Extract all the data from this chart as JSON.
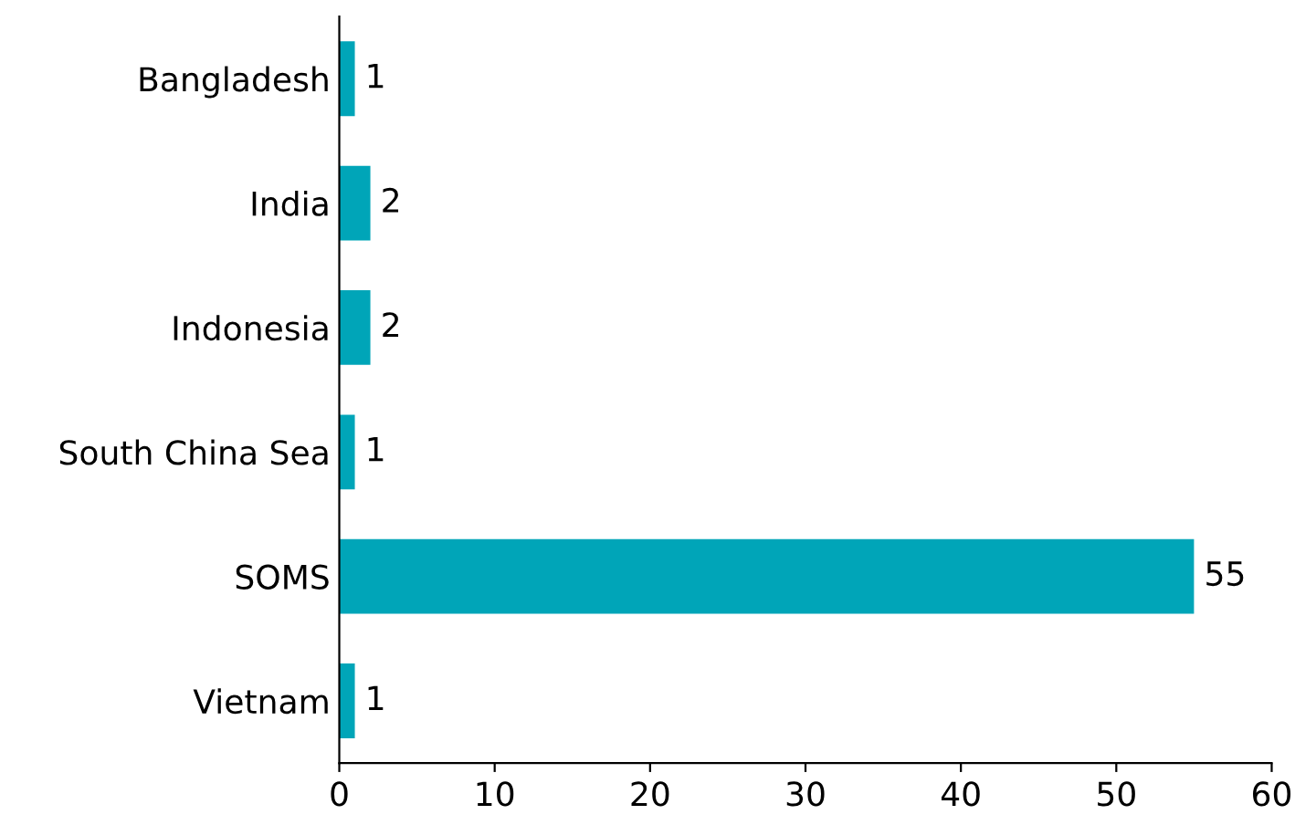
{
  "chart_data": {
    "type": "bar",
    "orientation": "horizontal",
    "categories": [
      "Bangladesh",
      "India",
      "Indonesia",
      "South China Sea",
      "SOMS",
      "Vietnam"
    ],
    "values": [
      1,
      2,
      2,
      1,
      55,
      1
    ],
    "color": "#00a5b8",
    "xlim": [
      0,
      60
    ],
    "xticks": [
      0,
      10,
      20,
      30,
      40,
      50,
      60
    ],
    "data_labels": true,
    "grid": false,
    "legend": false
  }
}
